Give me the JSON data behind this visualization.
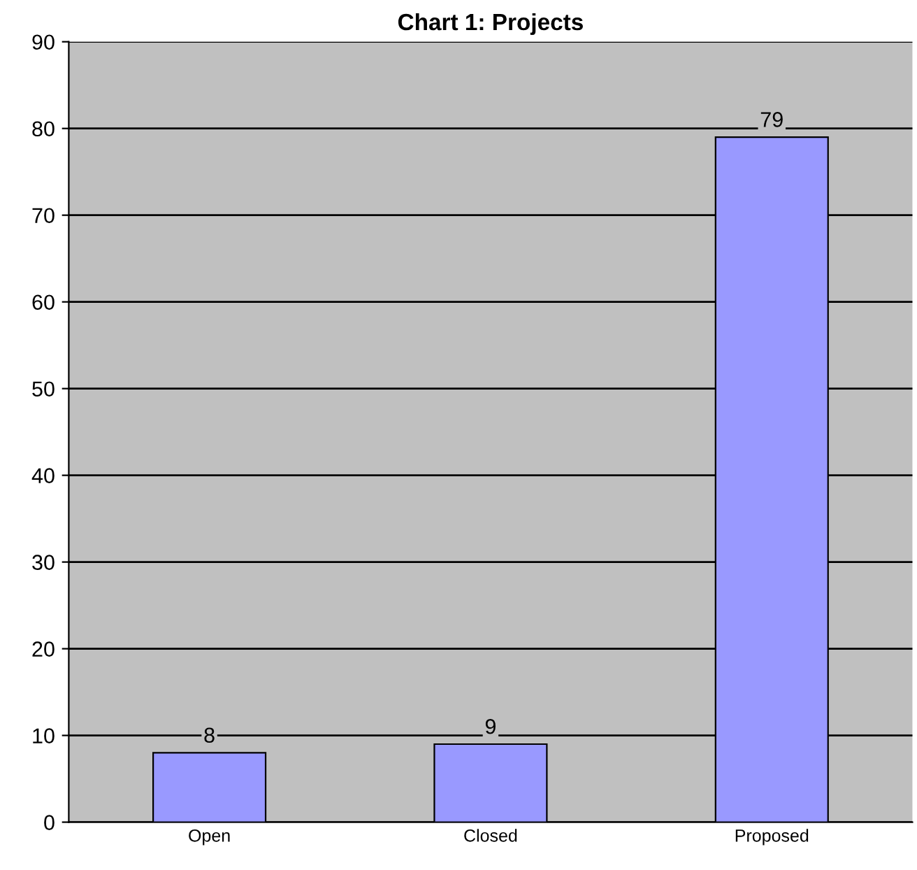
{
  "chart_data": {
    "type": "bar",
    "title": "Chart 1: Projects",
    "categories": [
      "Open",
      "Closed",
      "Proposed"
    ],
    "values": [
      8,
      9,
      79
    ],
    "color": "#9999ff",
    "ylim": [
      0,
      90
    ],
    "yticks": [
      0,
      10,
      20,
      30,
      40,
      50,
      60,
      70,
      80,
      90
    ],
    "grid": "y",
    "data_labels": true
  }
}
